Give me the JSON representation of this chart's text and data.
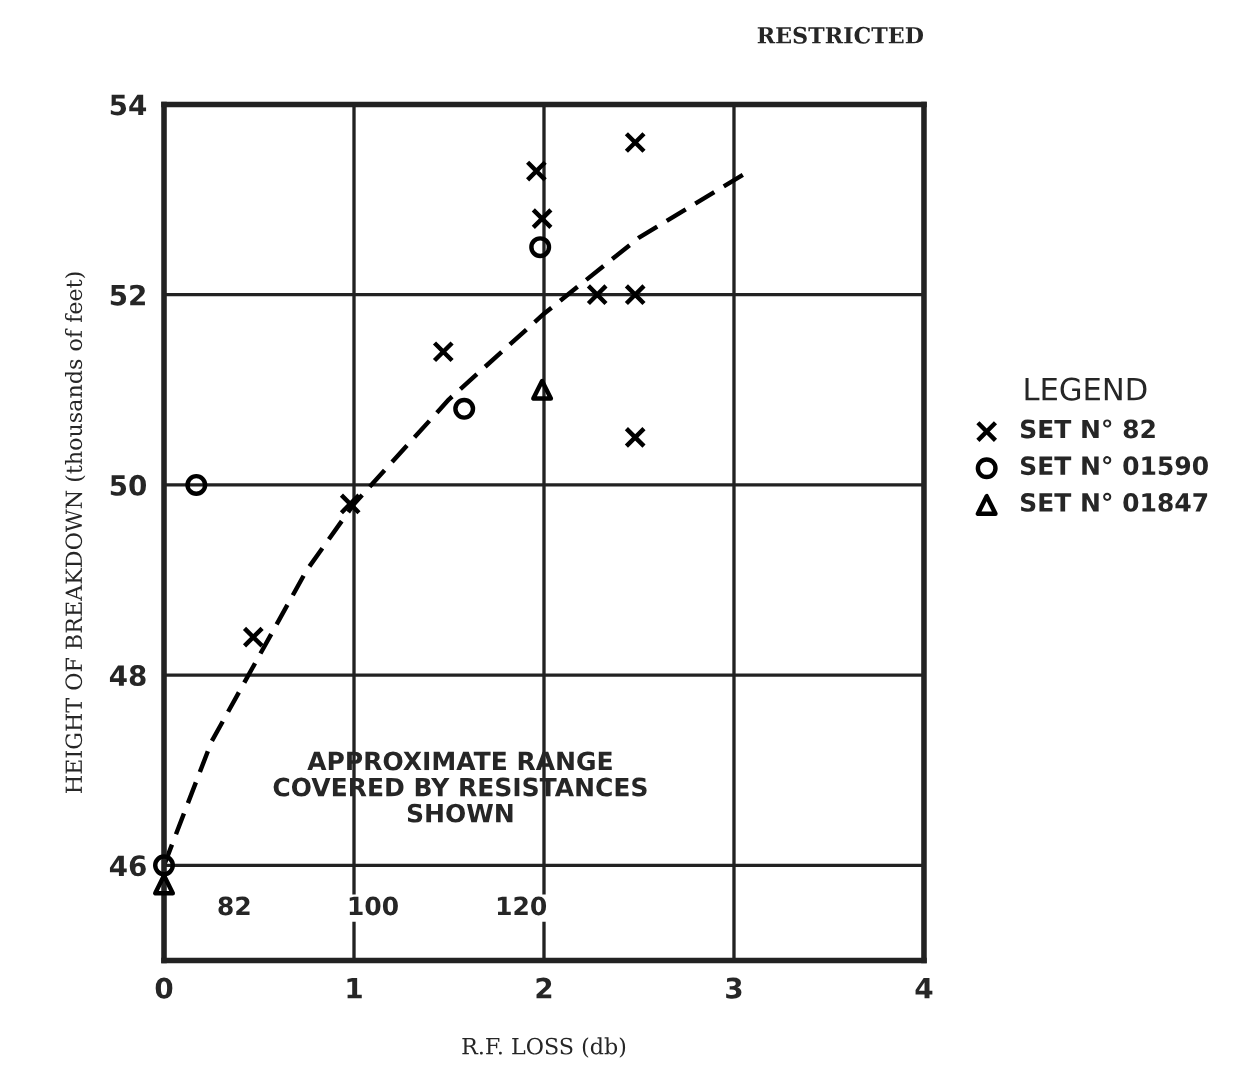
{
  "chart_data": {
    "type": "scatter",
    "title": "RESTRICTED",
    "xlabel": "R.F. LOSS (db)",
    "ylabel": "HEIGHT OF BREAKDOWN (thousands of feet)",
    "legend_title": "LEGEND",
    "legend": "right",
    "grid": true,
    "xlim": [
      0,
      4
    ],
    "ylim": [
      45,
      54
    ],
    "xticks": [
      0,
      1,
      2,
      3,
      4
    ],
    "yticks": [
      46,
      48,
      50,
      52,
      54
    ],
    "series": [
      {
        "name": "SET N° 82",
        "color": "#000000",
        "marker": "cross",
        "x": [
          0.47,
          0.98,
          1.47,
          1.96,
          1.99,
          2.28,
          2.48,
          2.48,
          2.48
        ],
        "values": [
          48.4,
          49.8,
          51.4,
          53.3,
          52.8,
          52.0,
          53.6,
          52.0,
          50.5
        ]
      },
      {
        "name": "SET N° 01590",
        "color": "#000000",
        "marker": "circle",
        "x": [
          0.0,
          0.17,
          1.58,
          1.98
        ],
        "values": [
          46.0,
          50.0,
          50.8,
          52.5
        ]
      },
      {
        "name": "SET N° 01847",
        "color": "#000000",
        "marker": "triangle",
        "x": [
          0.0,
          1.99
        ],
        "values": [
          45.8,
          51.0
        ]
      },
      {
        "type": "line",
        "color": "#000000",
        "line_style": "dashed",
        "marker": "none",
        "x": [
          0.0,
          0.25,
          0.5,
          0.75,
          1.0,
          1.5,
          2.0,
          2.5,
          3.08
        ],
        "values": [
          46.0,
          47.3,
          48.2,
          49.1,
          49.8,
          50.9,
          51.8,
          52.6,
          53.3
        ]
      }
    ],
    "annotations": [
      "APPROXIMATE RANGE\nCOVERED BY RESISTANCES\nSHOWN",
      {
        "text": "82",
        "x": 0.37,
        "y": 45.55
      },
      {
        "text": "100",
        "x": 1.1,
        "y": 45.55
      },
      {
        "text": "120",
        "x": 1.88,
        "y": 45.55
      }
    ]
  }
}
